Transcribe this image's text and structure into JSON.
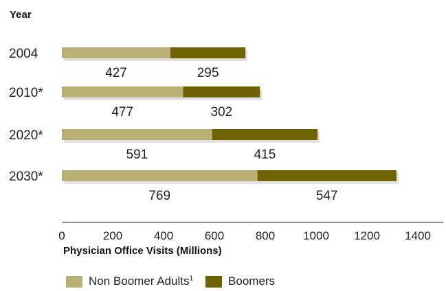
{
  "chart_data": {
    "type": "bar",
    "orientation": "horizontal",
    "stacked": true,
    "y_axis_title": "Year",
    "xlabel": "Physician Office Visits (Millions)",
    "xlim": [
      0,
      1500
    ],
    "xticks": [
      0,
      200,
      400,
      600,
      800,
      1000,
      1200,
      1400
    ],
    "categories": [
      "2004",
      "2010*",
      "2020*",
      "2030*"
    ],
    "series": [
      {
        "name": "Non Boomer Adults",
        "footnote": "1",
        "color": "#b8b173",
        "values": [
          427,
          477,
          591,
          769
        ]
      },
      {
        "name": "Boomers",
        "color": "#6e6300",
        "values": [
          295,
          302,
          415,
          547
        ]
      }
    ],
    "grid": false,
    "legend_position": "bottom"
  }
}
